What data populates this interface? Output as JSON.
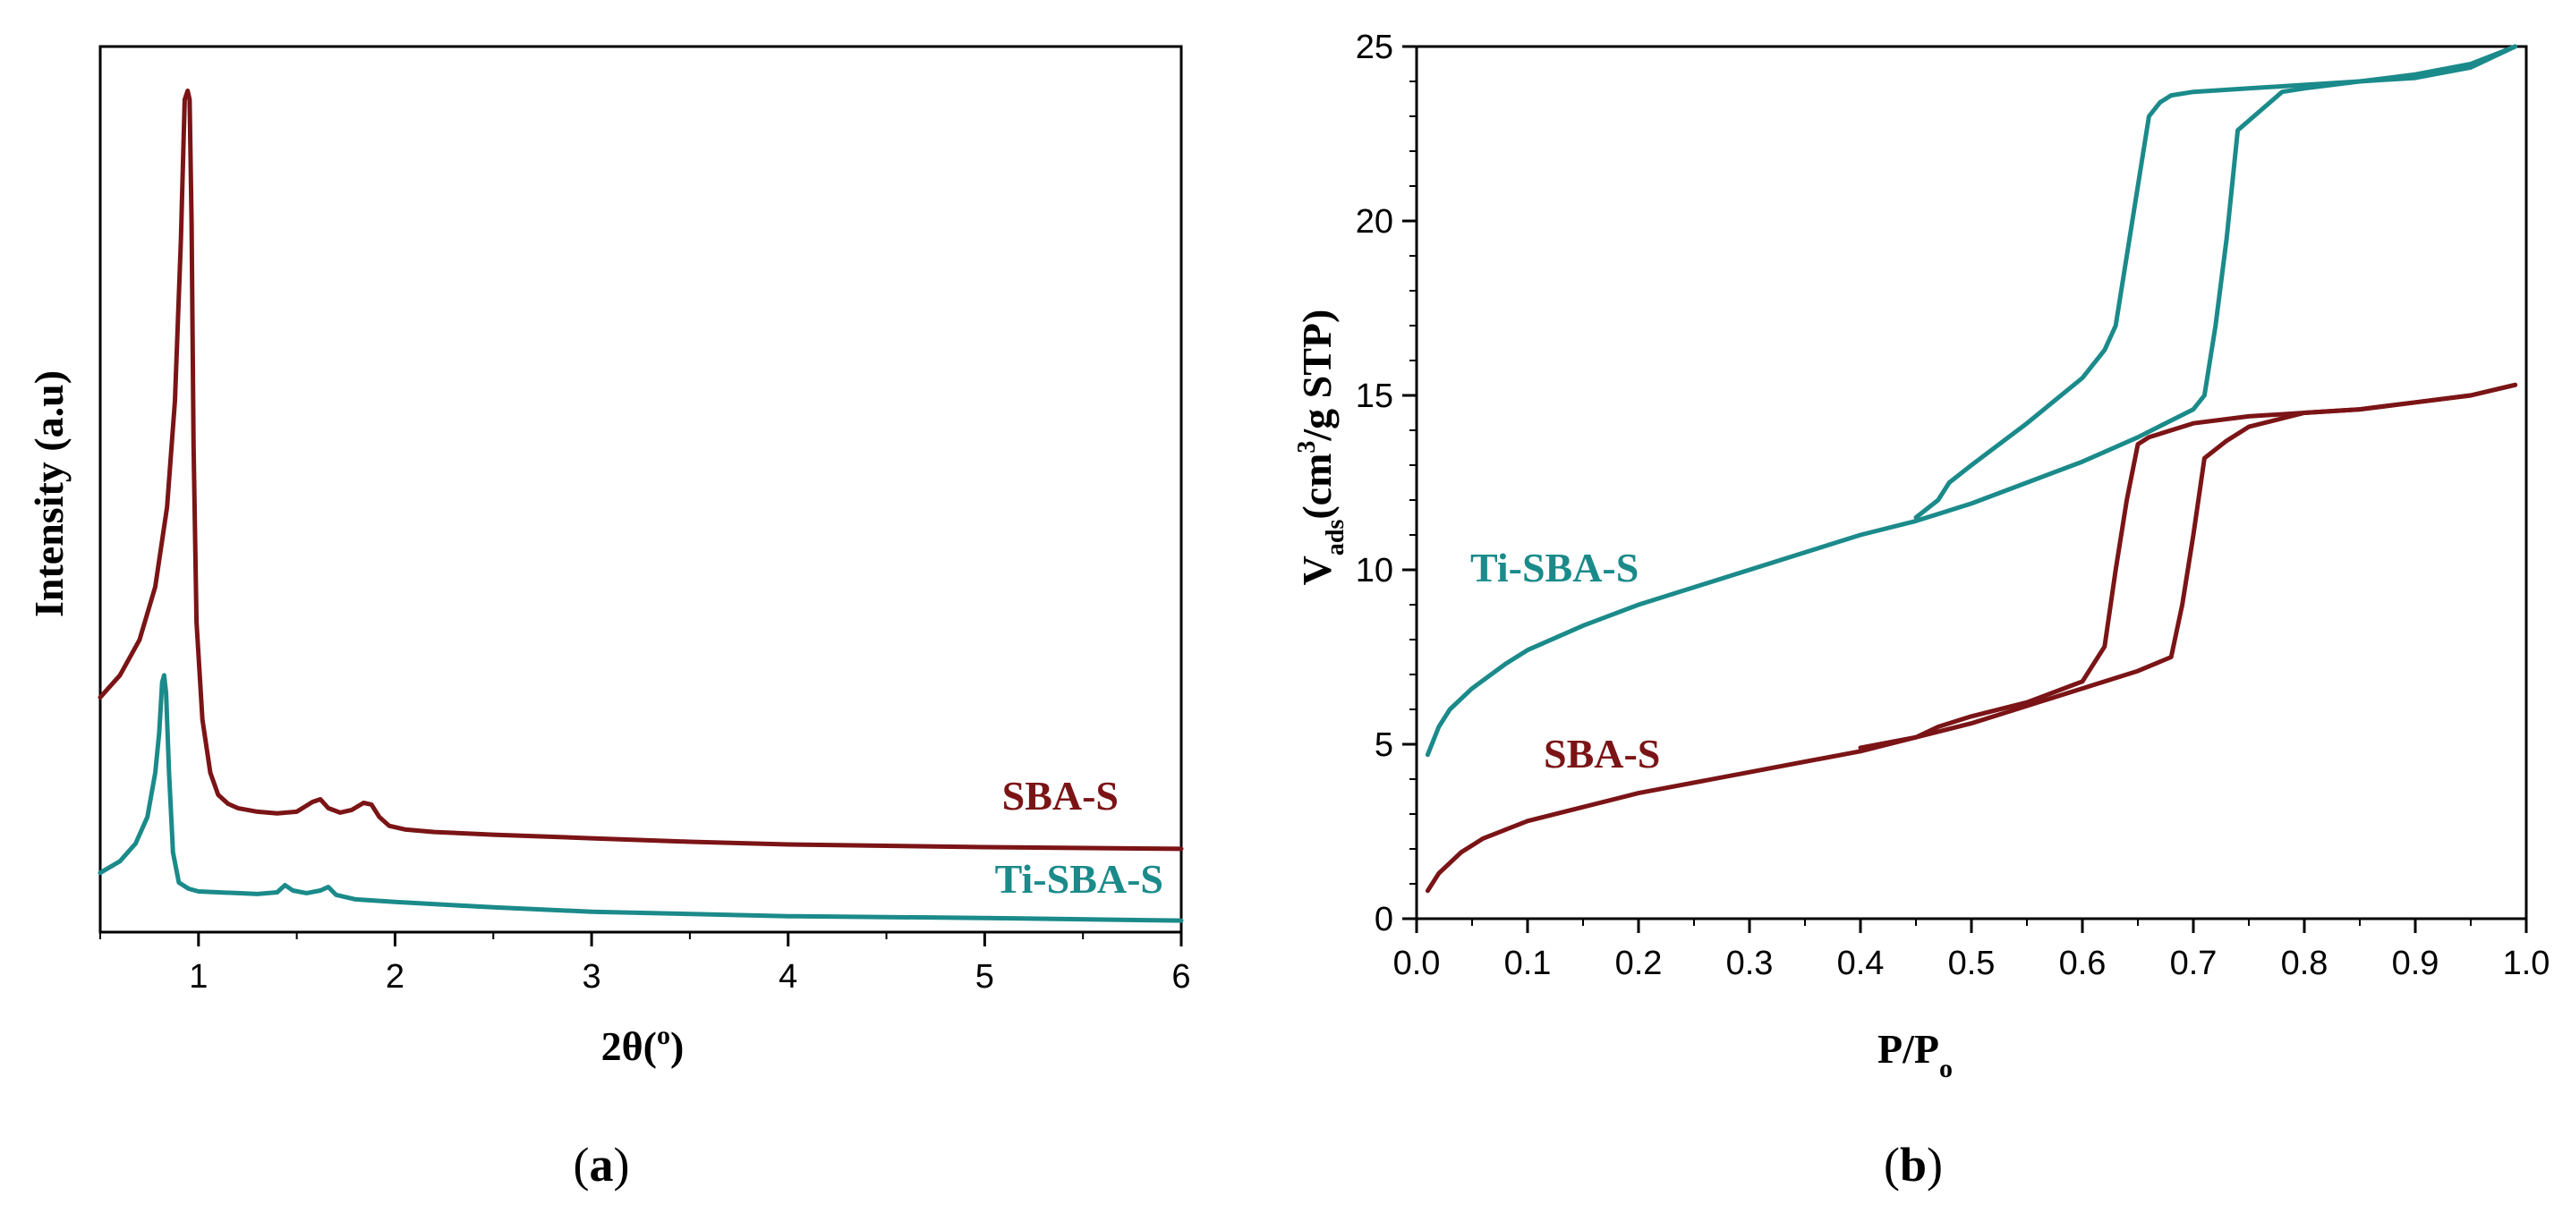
{
  "chart_data": [
    {
      "id": "a",
      "type": "line",
      "caption_letter": "a",
      "xlabel_main": "2θ(",
      "xlabel_deg": "o",
      "xlabel_close": ")",
      "ylabel": "Intensity (a.u)",
      "xlim": [
        0.5,
        6
      ],
      "ylim": [
        0,
        100
      ],
      "xticks": [
        1,
        2,
        3,
        4,
        5,
        6
      ],
      "xticklabels": [
        "1",
        "2",
        "3",
        "4",
        "5",
        "6"
      ],
      "series": [
        {
          "name": "SBA-S",
          "color": "#7b1416",
          "x": [
            0.5,
            0.6,
            0.7,
            0.78,
            0.84,
            0.88,
            0.91,
            0.93,
            0.945,
            0.955,
            0.965,
            0.975,
            0.99,
            1.02,
            1.06,
            1.1,
            1.15,
            1.2,
            1.3,
            1.4,
            1.5,
            1.58,
            1.62,
            1.66,
            1.72,
            1.78,
            1.84,
            1.88,
            1.92,
            1.97,
            2.05,
            2.2,
            2.5,
            3.0,
            3.5,
            4.0,
            5.0,
            6.0
          ],
          "y": [
            26.5,
            29,
            33,
            39,
            48,
            60,
            78,
            94,
            95,
            94,
            80,
            55,
            35,
            24,
            18,
            15.5,
            14.5,
            14,
            13.6,
            13.4,
            13.6,
            14.7,
            15,
            14,
            13.5,
            13.8,
            14.6,
            14.4,
            13,
            12,
            11.6,
            11.3,
            11,
            10.6,
            10.2,
            9.9,
            9.6,
            9.4
          ]
        },
        {
          "name": "Ti-SBA-S",
          "color": "#1b8a8a",
          "x": [
            0.5,
            0.6,
            0.68,
            0.74,
            0.78,
            0.8,
            0.815,
            0.825,
            0.835,
            0.85,
            0.87,
            0.9,
            0.95,
            1.0,
            1.1,
            1.2,
            1.3,
            1.4,
            1.44,
            1.48,
            1.55,
            1.62,
            1.66,
            1.7,
            1.8,
            2.0,
            2.5,
            3.0,
            4.0,
            5.0,
            6.0
          ],
          "y": [
            6.7,
            8,
            10,
            13,
            18,
            22.5,
            28.2,
            29,
            27,
            18,
            9,
            5.6,
            4.9,
            4.6,
            4.5,
            4.4,
            4.3,
            4.5,
            5.3,
            4.7,
            4.4,
            4.7,
            5.1,
            4.2,
            3.7,
            3.4,
            2.8,
            2.3,
            1.8,
            1.6,
            1.3
          ]
        }
      ],
      "annotations": [
        {
          "text": "SBA-S",
          "color": "#7b1416"
        },
        {
          "text": "Ti-SBA-S",
          "color": "#1b8a8a"
        }
      ]
    },
    {
      "id": "b",
      "type": "line",
      "caption_letter": "b",
      "xlabel_main": "P/P",
      "xlabel_sub": "o",
      "ylabel_main": "V",
      "ylabel_sub": "ads",
      "ylabel_unit_pre": "(cm",
      "ylabel_sup": "3",
      "ylabel_unit_post": "/g STP)",
      "xlim": [
        0,
        1
      ],
      "ylim": [
        0,
        25
      ],
      "xticks": [
        0.0,
        0.1,
        0.2,
        0.3,
        0.4,
        0.5,
        0.6,
        0.7,
        0.8,
        0.9,
        1.0
      ],
      "xticklabels": [
        "0.0",
        "0.1",
        "0.2",
        "0.3",
        "0.4",
        "0.5",
        "0.6",
        "0.7",
        "0.8",
        "0.9",
        "1.0"
      ],
      "yticks": [
        0,
        5,
        10,
        15,
        20,
        25
      ],
      "yticklabels": [
        "0",
        "5",
        "10",
        "15",
        "20",
        "25"
      ],
      "series": [
        {
          "name": "Ti-SBA-S adsorption",
          "color": "#1b8a8a",
          "x": [
            0.01,
            0.02,
            0.03,
            0.05,
            0.08,
            0.1,
            0.15,
            0.2,
            0.25,
            0.3,
            0.35,
            0.4,
            0.45,
            0.5,
            0.55,
            0.6,
            0.65,
            0.7,
            0.71,
            0.72,
            0.73,
            0.74,
            0.78,
            0.8,
            0.85,
            0.9,
            0.95,
            0.99
          ],
          "y": [
            4.7,
            5.5,
            6.0,
            6.6,
            7.3,
            7.7,
            8.4,
            9.0,
            9.5,
            10.0,
            10.5,
            11.0,
            11.4,
            11.9,
            12.5,
            13.1,
            13.8,
            14.6,
            15.0,
            17.0,
            19.5,
            22.6,
            23.7,
            23.8,
            24.0,
            24.2,
            24.5,
            25.0
          ]
        },
        {
          "name": "Ti-SBA-S desorption",
          "color": "#1b8a8a",
          "x": [
            0.99,
            0.95,
            0.9,
            0.85,
            0.8,
            0.75,
            0.7,
            0.68,
            0.67,
            0.66,
            0.65,
            0.64,
            0.63,
            0.62,
            0.6,
            0.55,
            0.5,
            0.48,
            0.47,
            0.45
          ],
          "y": [
            25.0,
            24.4,
            24.1,
            24.0,
            23.9,
            23.8,
            23.7,
            23.6,
            23.4,
            23.0,
            21.0,
            19.0,
            17.0,
            16.3,
            15.5,
            14.2,
            13.0,
            12.5,
            12.0,
            11.5
          ]
        },
        {
          "name": "SBA-S adsorption",
          "color": "#7b1416",
          "x": [
            0.01,
            0.02,
            0.04,
            0.06,
            0.1,
            0.15,
            0.2,
            0.3,
            0.4,
            0.45,
            0.5,
            0.55,
            0.6,
            0.65,
            0.68,
            0.69,
            0.7,
            0.71,
            0.73,
            0.75,
            0.8,
            0.85,
            0.9,
            0.95,
            0.99
          ],
          "y": [
            0.8,
            1.3,
            1.9,
            2.3,
            2.8,
            3.2,
            3.6,
            4.2,
            4.8,
            5.2,
            5.6,
            6.1,
            6.6,
            7.1,
            7.5,
            9.0,
            11.0,
            13.2,
            13.7,
            14.1,
            14.5,
            14.6,
            14.8,
            15.0,
            15.3
          ]
        },
        {
          "name": "SBA-S desorption",
          "color": "#7b1416",
          "x": [
            0.99,
            0.95,
            0.9,
            0.85,
            0.8,
            0.75,
            0.7,
            0.68,
            0.66,
            0.65,
            0.64,
            0.63,
            0.62,
            0.6,
            0.55,
            0.5,
            0.47,
            0.45,
            0.4
          ],
          "y": [
            15.3,
            15.0,
            14.8,
            14.6,
            14.5,
            14.4,
            14.2,
            14.0,
            13.8,
            13.6,
            12.0,
            10.0,
            7.8,
            6.8,
            6.2,
            5.8,
            5.5,
            5.2,
            4.9
          ]
        }
      ],
      "annotations": [
        {
          "text": "Ti-SBA-S",
          "color": "#1b8a8a"
        },
        {
          "text": "SBA-S",
          "color": "#7b1416"
        }
      ]
    }
  ]
}
